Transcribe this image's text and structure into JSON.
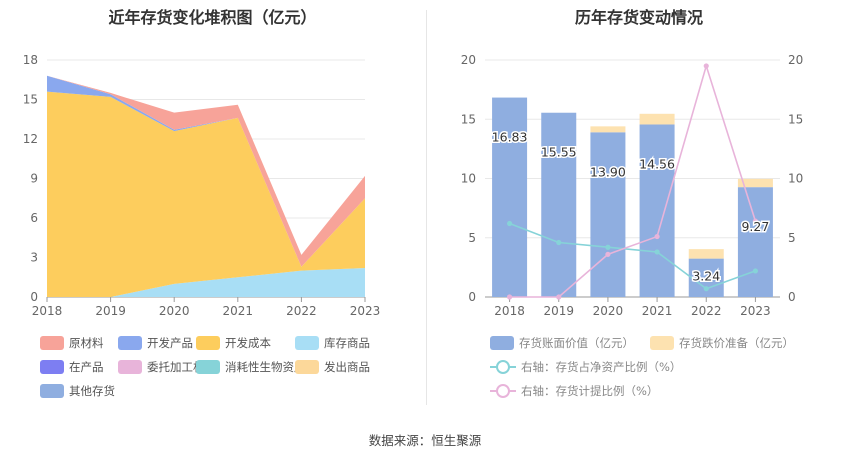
{
  "source": "数据来源：恒生聚源",
  "chart_data": [
    {
      "type": "area",
      "stacked": true,
      "title": "近年存货变化堆积图（亿元）",
      "x": [
        "2018",
        "2019",
        "2020",
        "2021",
        "2022",
        "2023"
      ],
      "ylim": [
        0,
        18
      ],
      "yticks": [
        0,
        3,
        6,
        9,
        12,
        15,
        18
      ],
      "grid": true,
      "legend_position": "bottom",
      "legend": [
        "原材料",
        "开发产品",
        "开发成本",
        "库存商品",
        "在产品",
        "委托加工材料",
        "消耗性生物资产",
        "发出商品",
        "其他存货"
      ],
      "colors": {
        "原材料": "#f7a399",
        "开发产品": "#8aa8ee",
        "开发成本": "#fdcd5d",
        "库存商品": "#a8def5",
        "在产品": "#7d7ef2",
        "委托加工材料": "#e8b4da",
        "消耗性生物资产": "#86d3d8",
        "发出商品": "#fcd89a",
        "其他存货": "#8faee0"
      },
      "series": [
        {
          "name": "库存商品",
          "values": [
            0,
            0,
            1.0,
            1.5,
            2.0,
            2.2
          ]
        },
        {
          "name": "开发成本",
          "values": [
            15.6,
            15.2,
            11.6,
            12.1,
            0.3,
            5.3
          ]
        },
        {
          "name": "开发产品",
          "values": [
            1.2,
            0.2,
            0.1,
            0,
            0,
            0
          ]
        },
        {
          "name": "原材料",
          "values": [
            0,
            0.1,
            1.3,
            1.0,
            0.9,
            1.7
          ]
        }
      ]
    },
    {
      "type": "bar+line",
      "title": "历年存货变动情况",
      "x": [
        "2018",
        "2019",
        "2020",
        "2021",
        "2022",
        "2023"
      ],
      "ylim_left": [
        0,
        20
      ],
      "ylim_right": [
        0,
        20
      ],
      "yticks": [
        0,
        5,
        10,
        15,
        20
      ],
      "grid": true,
      "legend_position": "bottom",
      "bars": [
        {
          "name": "存货账面价值（亿元）",
          "values": [
            16.83,
            15.55,
            13.9,
            14.56,
            3.24,
            9.27
          ],
          "labels": [
            "16.83",
            "15.55",
            "13.90",
            "14.56",
            "3.24",
            "9.27"
          ],
          "color": "#8faee0"
        },
        {
          "name": "存货跌价准备（亿元）",
          "values": [
            0,
            0,
            0.5,
            0.9,
            0.8,
            0.7
          ],
          "color": "#fde2b0"
        }
      ],
      "lines": [
        {
          "name": "右轴：存货占净资产比例（%）",
          "values": [
            6.2,
            4.6,
            4.2,
            3.8,
            0.7,
            2.2
          ],
          "color": "#86d3d8"
        },
        {
          "name": "右轴：存货计提比例（%）",
          "values": [
            0,
            0,
            3.6,
            5.1,
            19.5,
            6.4
          ],
          "color": "#e8b4da"
        }
      ]
    }
  ]
}
